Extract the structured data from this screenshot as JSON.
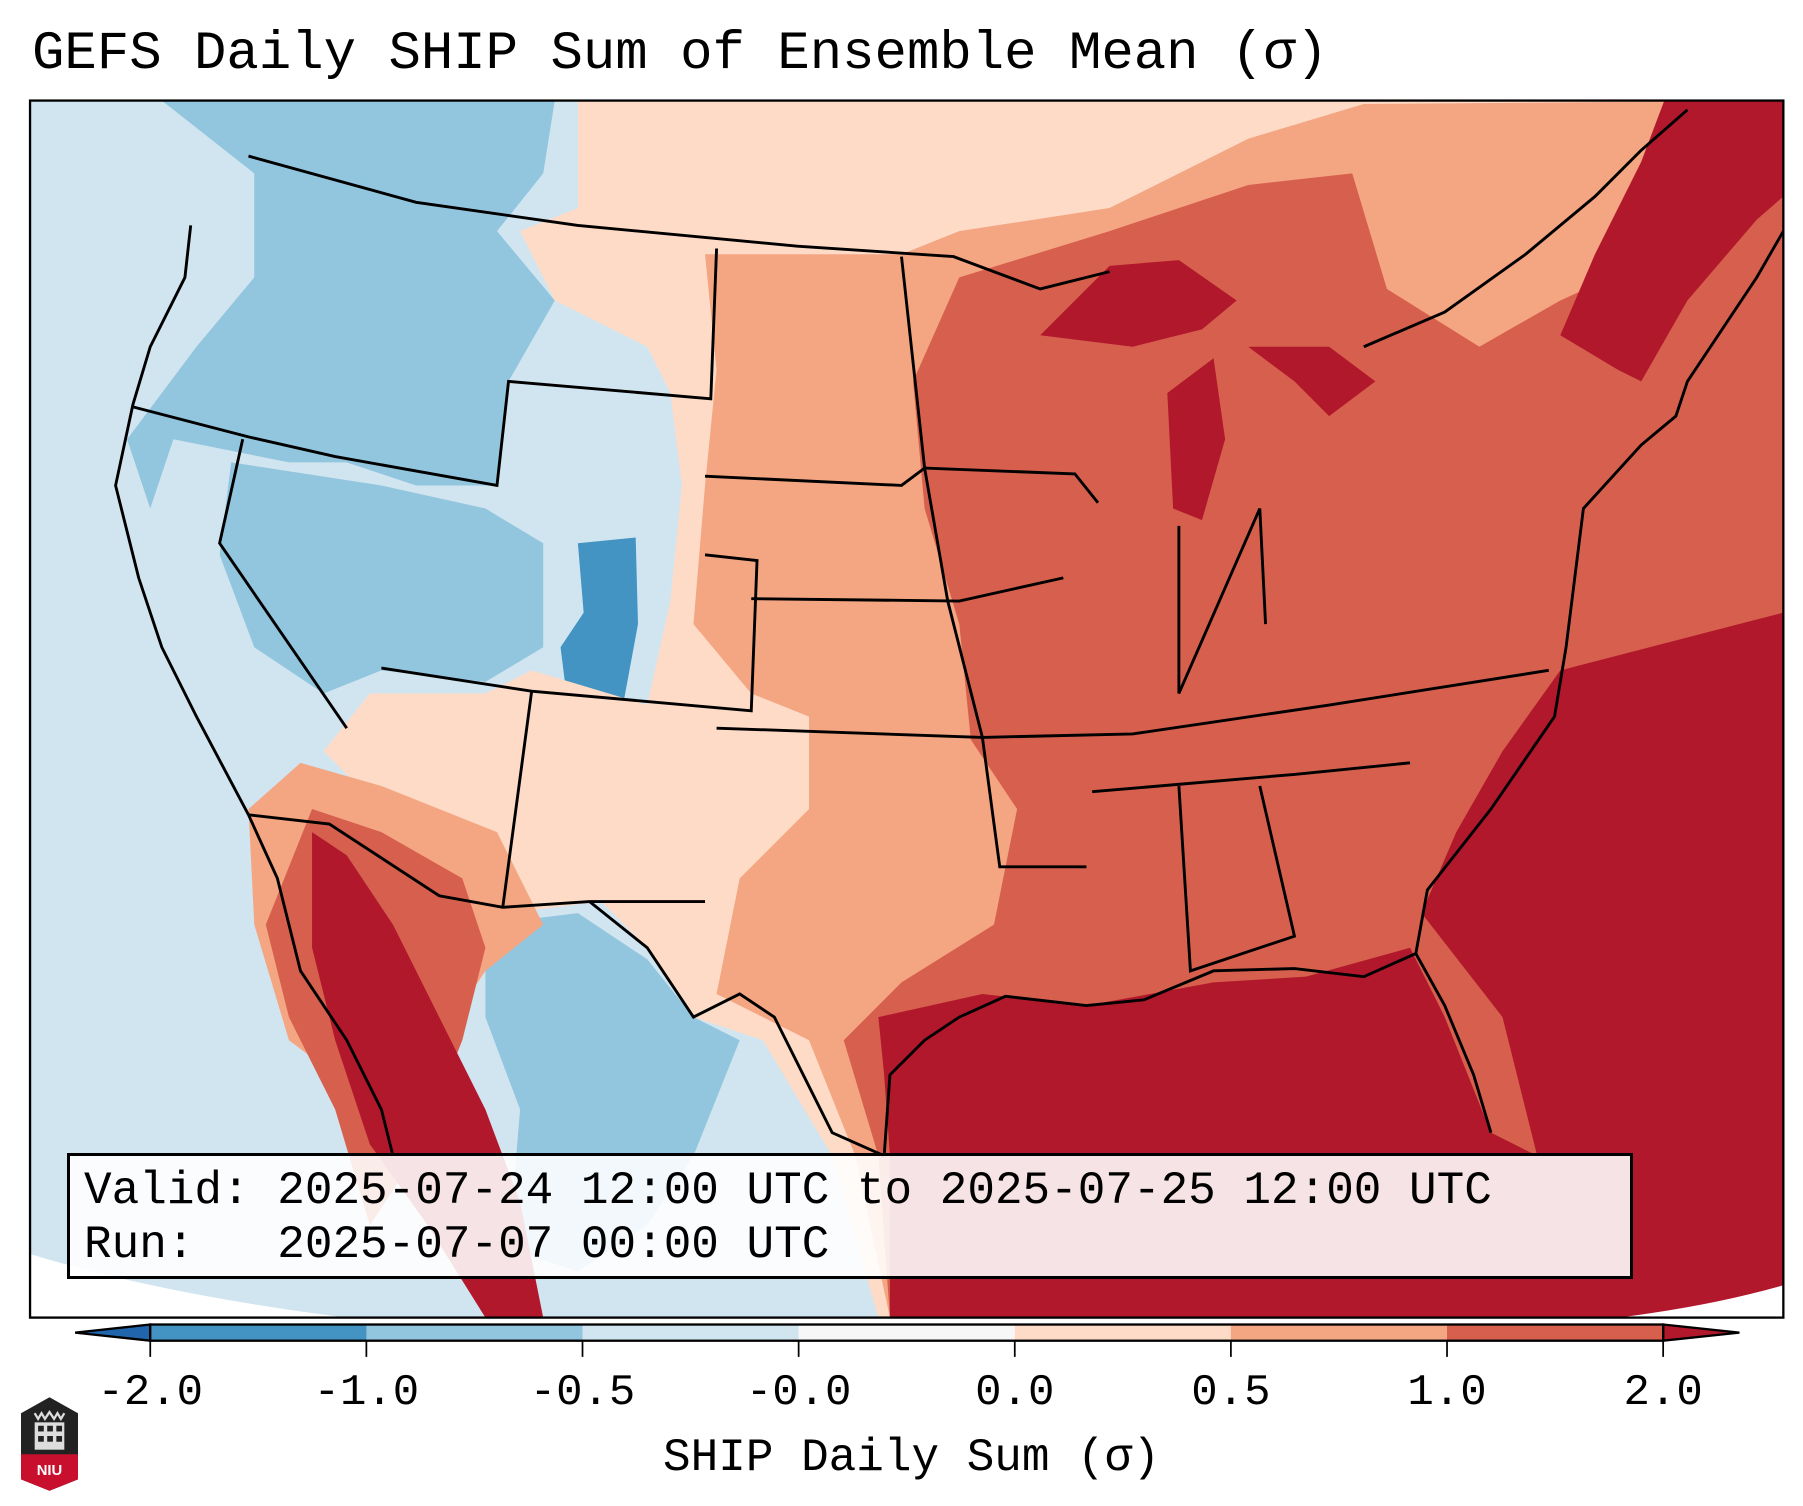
{
  "title": "GEFS Daily SHIP Sum of Ensemble Mean (σ)",
  "info": {
    "valid": "Valid: 2025-07-24 12:00 UTC to 2025-07-25 12:00 UTC",
    "run": "Run:   2025-07-07 00:00 UTC"
  },
  "colorbar": {
    "label": "SHIP Daily Sum (σ)",
    "ticks": [
      "-2.0",
      "-1.0",
      "-0.5",
      "-0.0",
      "0.0",
      "0.5",
      "1.0",
      "2.0"
    ],
    "colors": [
      "#2166ac",
      "#4393c3",
      "#92c5de",
      "#d1e5f0",
      "#f7f7f7",
      "#fddbc7",
      "#f4a582",
      "#d6604d",
      "#b2182b"
    ],
    "extend": "both"
  },
  "logo": {
    "text": "NIU"
  }
}
